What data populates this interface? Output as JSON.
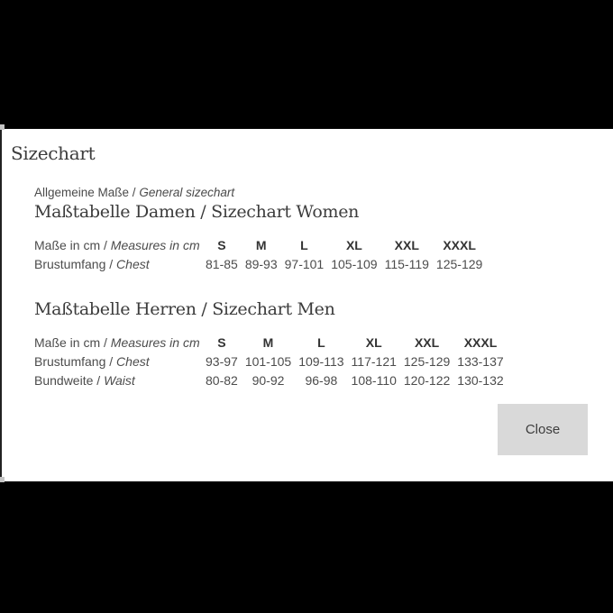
{
  "dialog": {
    "title": "Sizechart",
    "close_label": "Close"
  },
  "intro": {
    "text_de": "Allgemeine Maße / ",
    "text_en": "General sizechart"
  },
  "women": {
    "heading": "Maßtabelle Damen / Sizechart Women",
    "measure_label_de": "Maße in cm / ",
    "measure_label_en": "Measures in cm",
    "sizes": [
      "S",
      "M",
      "L",
      "XL",
      "XXL",
      "XXXL"
    ],
    "rows": [
      {
        "label_de": "Brustumfang / ",
        "label_en": "Chest",
        "values": [
          "81-85",
          "89-93",
          "97-101",
          "105-109",
          "115-119",
          "125-129"
        ]
      }
    ]
  },
  "men": {
    "heading": "Maßtabelle Herren / Sizechart Men",
    "measure_label_de": "Maße in cm / ",
    "measure_label_en": "Measures in cm",
    "sizes": [
      "S",
      "M",
      "L",
      "XL",
      "XXL",
      "XXXL"
    ],
    "rows": [
      {
        "label_de": "Brustumfang / ",
        "label_en": "Chest",
        "values": [
          "93-97",
          "101-105",
          "109-113",
          "117-121",
          "125-129",
          "133-137"
        ]
      },
      {
        "label_de": "Bundweite / ",
        "label_en": "Waist",
        "values": [
          "80-82",
          "90-92",
          "96-98",
          "108-110",
          "120-122",
          "130-132"
        ]
      }
    ]
  },
  "colors": {
    "background": "#000000",
    "panel": "#ffffff",
    "button": "#d9d9d9",
    "heading_text": "#3c3c3c",
    "body_text": "#4c4c4c"
  }
}
